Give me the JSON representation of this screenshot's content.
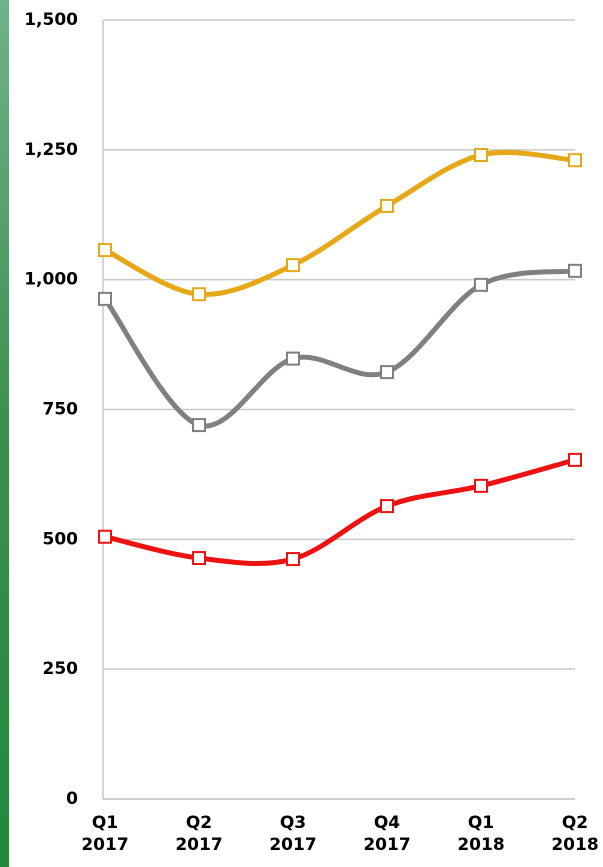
{
  "chart_data": {
    "type": "line",
    "categories": [
      "Q1 2017",
      "Q2 2017",
      "Q3 2017",
      "Q4 2017",
      "Q1 2018",
      "Q2 2018"
    ],
    "series": [
      {
        "color": "#e6a817",
        "values": [
          1057,
          972,
          1028,
          1142,
          1240,
          1230
        ]
      },
      {
        "color": "#808080",
        "values": [
          963,
          720,
          848,
          822,
          990,
          1017
        ]
      },
      {
        "color": "#ee1111",
        "values": [
          505,
          464,
          462,
          564,
          603,
          653
        ]
      }
    ],
    "ylim": [
      0,
      1500
    ],
    "yticks": [
      0,
      250,
      500,
      750,
      {
        "value": 1000,
        "label": "1,000"
      },
      {
        "value": 1250,
        "label": "1,250"
      },
      {
        "value": 1500,
        "label": "1,500"
      }
    ],
    "grid": true
  }
}
